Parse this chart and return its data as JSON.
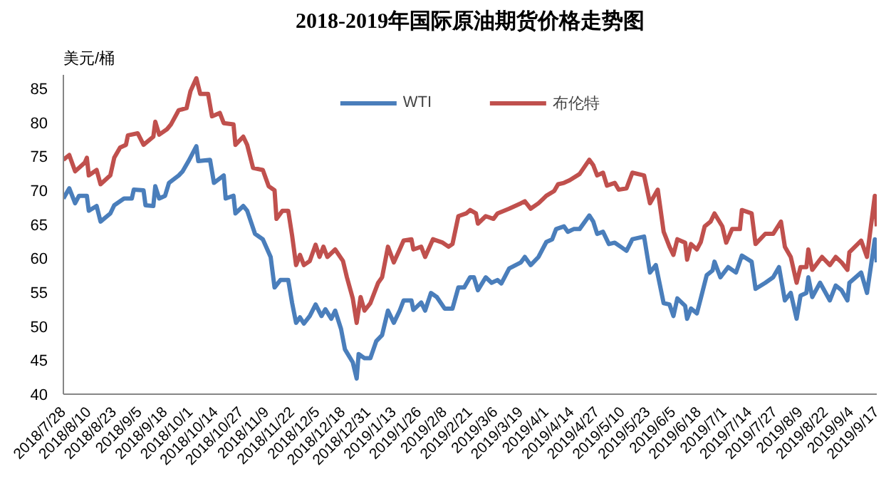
{
  "chart_data": {
    "type": "line",
    "title": "2018-2019年国际原油期货价格走势图",
    "ylabel": "美元/桶",
    "xlim": [
      "2018-07-28",
      "2019-09-17"
    ],
    "ylim": [
      40,
      87
    ],
    "yticks": [
      40,
      45,
      50,
      55,
      60,
      65,
      70,
      75,
      80,
      85
    ],
    "xticks": [
      {
        "value": "2018-07-28",
        "label": "2018/7/28"
      },
      {
        "value": "2018-08-10",
        "label": "2018/8/10"
      },
      {
        "value": "2018-08-23",
        "label": "2018/8/23"
      },
      {
        "value": "2018-09-05",
        "label": "2018/9/5"
      },
      {
        "value": "2018-09-18",
        "label": "2018/9/18"
      },
      {
        "value": "2018-10-01",
        "label": "2018/10/1"
      },
      {
        "value": "2018-10-14",
        "label": "2018/10/14"
      },
      {
        "value": "2018-10-27",
        "label": "2018/10/27"
      },
      {
        "value": "2018-11-09",
        "label": "2018/11/9"
      },
      {
        "value": "2018-11-22",
        "label": "2018/11/22"
      },
      {
        "value": "2018-12-05",
        "label": "2018/12/5"
      },
      {
        "value": "2018-12-18",
        "label": "2018/12/18"
      },
      {
        "value": "2018-12-31",
        "label": "2018/12/31"
      },
      {
        "value": "2019-01-13",
        "label": "2019/1/13"
      },
      {
        "value": "2019-01-26",
        "label": "2019/1/26"
      },
      {
        "value": "2019-02-08",
        "label": "2019/2/8"
      },
      {
        "value": "2019-02-21",
        "label": "2019/2/21"
      },
      {
        "value": "2019-03-06",
        "label": "2019/3/6"
      },
      {
        "value": "2019-03-19",
        "label": "2019/3/19"
      },
      {
        "value": "2019-04-01",
        "label": "2019/4/1"
      },
      {
        "value": "2019-04-14",
        "label": "2019/4/14"
      },
      {
        "value": "2019-04-27",
        "label": "2019/4/27"
      },
      {
        "value": "2019-05-10",
        "label": "2019/5/10"
      },
      {
        "value": "2019-05-23",
        "label": "2019/5/23"
      },
      {
        "value": "2019-06-05",
        "label": "2019/6/5"
      },
      {
        "value": "2019-06-18",
        "label": "2019/6/18"
      },
      {
        "value": "2019-07-01",
        "label": "2019/7/1"
      },
      {
        "value": "2019-07-14",
        "label": "2019/7/14"
      },
      {
        "value": "2019-07-27",
        "label": "2019/7/27"
      },
      {
        "value": "2019-08-09",
        "label": "2019/8/9"
      },
      {
        "value": "2019-08-22",
        "label": "2019/8/22"
      },
      {
        "value": "2019-09-04",
        "label": "2019/9/4"
      },
      {
        "value": "2019-09-17",
        "label": "2019/9/17"
      }
    ],
    "grid": false,
    "legend": "top",
    "marker": "none",
    "line_style": "solid",
    "series": [
      {
        "name": "WTI",
        "color": "#4a7ebb",
        "x": [
          "2018-07-28",
          "2018-07-31",
          "2018-08-03",
          "2018-08-05",
          "2018-08-09",
          "2018-08-10",
          "2018-08-14",
          "2018-08-16",
          "2018-08-21",
          "2018-08-23",
          "2018-08-28",
          "2018-09-01",
          "2018-09-02",
          "2018-09-07",
          "2018-09-08",
          "2018-09-12",
          "2018-09-13",
          "2018-09-15",
          "2018-09-18",
          "2018-09-20",
          "2018-09-25",
          "2018-09-27",
          "2018-09-30",
          "2018-10-04",
          "2018-10-05",
          "2018-10-11",
          "2018-10-13",
          "2018-10-18",
          "2018-10-19",
          "2018-10-23",
          "2018-10-24",
          "2018-10-28",
          "2018-10-30",
          "2018-11-03",
          "2018-11-07",
          "2018-11-11",
          "2018-11-13",
          "2018-11-16",
          "2018-11-20",
          "2018-11-22",
          "2018-11-24",
          "2018-11-26",
          "2018-11-28",
          "2018-12-01",
          "2018-12-04",
          "2018-12-07",
          "2018-12-09",
          "2018-12-12",
          "2018-12-14",
          "2018-12-17",
          "2018-12-19",
          "2018-12-23",
          "2018-12-25",
          "2018-12-26",
          "2018-12-29",
          "2019-01-01",
          "2019-01-04",
          "2019-01-07",
          "2019-01-10",
          "2019-01-13",
          "2019-01-16",
          "2019-01-18",
          "2019-01-22",
          "2019-01-23",
          "2019-01-27",
          "2019-01-29",
          "2019-02-01",
          "2019-02-04",
          "2019-02-08",
          "2019-02-12",
          "2019-02-15",
          "2019-02-18",
          "2019-02-21",
          "2019-02-23",
          "2019-02-25",
          "2019-03-01",
          "2019-03-04",
          "2019-03-07",
          "2019-03-09",
          "2019-03-13",
          "2019-03-19",
          "2019-03-21",
          "2019-03-24",
          "2019-03-28",
          "2019-04-01",
          "2019-04-04",
          "2019-04-06",
          "2019-04-10",
          "2019-04-12",
          "2019-04-15",
          "2019-04-18",
          "2019-04-23",
          "2019-04-25",
          "2019-04-27",
          "2019-04-30",
          "2019-05-03",
          "2019-05-06",
          "2019-05-09",
          "2019-05-12",
          "2019-05-15",
          "2019-05-21",
          "2019-05-24",
          "2019-05-27",
          "2019-05-31",
          "2019-06-03",
          "2019-06-05",
          "2019-06-07",
          "2019-06-11",
          "2019-06-12",
          "2019-06-14",
          "2019-06-17",
          "2019-06-19",
          "2019-06-22",
          "2019-06-25",
          "2019-06-26",
          "2019-06-29",
          "2019-07-03",
          "2019-07-07",
          "2019-07-10",
          "2019-07-15",
          "2019-07-17",
          "2019-07-22",
          "2019-07-26",
          "2019-07-29",
          "2019-08-01",
          "2019-08-04",
          "2019-08-07",
          "2019-08-09",
          "2019-08-12",
          "2019-08-13",
          "2019-08-15",
          "2019-08-19",
          "2019-08-24",
          "2019-08-27",
          "2019-08-30",
          "2019-09-02",
          "2019-09-03",
          "2019-09-09",
          "2019-09-12",
          "2019-09-16",
          "2019-09-17"
        ],
        "values": [
          68.8,
          70.3,
          68.1,
          69.2,
          69.2,
          67.0,
          67.7,
          65.4,
          66.6,
          67.8,
          68.8,
          68.8,
          70.1,
          70.0,
          67.8,
          67.7,
          70.6,
          68.8,
          69.2,
          71.1,
          72.2,
          72.8,
          74.3,
          76.5,
          74.3,
          74.5,
          71.1,
          72.2,
          68.8,
          69.2,
          66.6,
          67.7,
          67.0,
          63.6,
          62.8,
          60.2,
          55.7,
          56.8,
          56.8,
          53.4,
          50.5,
          51.3,
          50.4,
          51.5,
          53.2,
          51.5,
          52.5,
          51.1,
          52.3,
          49.6,
          46.6,
          44.7,
          42.3,
          45.9,
          45.3,
          45.3,
          47.8,
          48.7,
          52.3,
          50.5,
          52.3,
          53.8,
          53.8,
          52.4,
          53.5,
          52.3,
          54.9,
          54.3,
          52.6,
          52.6,
          55.7,
          55.7,
          57.2,
          57.2,
          55.3,
          57.2,
          56.4,
          56.8,
          56.3,
          58.5,
          59.4,
          60.2,
          59.0,
          60.2,
          62.4,
          62.8,
          64.3,
          64.7,
          63.9,
          64.3,
          64.3,
          66.3,
          65.4,
          63.6,
          63.9,
          62.1,
          62.3,
          61.7,
          61.1,
          62.8,
          63.2,
          57.9,
          59.0,
          53.4,
          53.2,
          51.5,
          54.1,
          53.0,
          51.1,
          52.6,
          51.9,
          54.1,
          57.5,
          58.2,
          59.5,
          57.2,
          58.7,
          57.9,
          60.4,
          59.5,
          55.5,
          56.4,
          57.2,
          58.7,
          53.8,
          54.9,
          51.1,
          54.5,
          54.9,
          57.2,
          54.3,
          56.4,
          53.8,
          56.0,
          55.3,
          53.8,
          56.4,
          57.9,
          54.9,
          62.8,
          59.4
        ]
      },
      {
        "name": "布伦特",
        "color": "#c0504d",
        "x": [
          "2018-07-28",
          "2018-07-31",
          "2018-08-03",
          "2018-08-08",
          "2018-08-09",
          "2018-08-10",
          "2018-08-14",
          "2018-08-16",
          "2018-08-21",
          "2018-08-23",
          "2018-08-26",
          "2018-08-29",
          "2018-08-30",
          "2018-09-04",
          "2018-09-07",
          "2018-09-12",
          "2018-09-13",
          "2018-09-15",
          "2018-09-19",
          "2018-09-21",
          "2018-09-25",
          "2018-09-29",
          "2018-10-01",
          "2018-10-04",
          "2018-10-06",
          "2018-10-10",
          "2018-10-12",
          "2018-10-16",
          "2018-10-18",
          "2018-10-23",
          "2018-10-24",
          "2018-10-28",
          "2018-10-30",
          "2018-11-02",
          "2018-11-07",
          "2018-11-10",
          "2018-11-13",
          "2018-11-14",
          "2018-11-17",
          "2018-11-20",
          "2018-11-22",
          "2018-11-24",
          "2018-11-26",
          "2018-11-28",
          "2018-12-01",
          "2018-12-04",
          "2018-12-06",
          "2018-12-08",
          "2018-12-10",
          "2018-12-14",
          "2018-12-18",
          "2018-12-20",
          "2018-12-23",
          "2018-12-25",
          "2018-12-27",
          "2018-12-29",
          "2019-01-01",
          "2019-01-05",
          "2019-01-07",
          "2019-01-10",
          "2019-01-13",
          "2019-01-16",
          "2019-01-18",
          "2019-01-22",
          "2019-01-23",
          "2019-01-27",
          "2019-01-29",
          "2019-02-02",
          "2019-02-07",
          "2019-02-10",
          "2019-02-12",
          "2019-02-15",
          "2019-02-19",
          "2019-02-21",
          "2019-02-24",
          "2019-02-25",
          "2019-03-01",
          "2019-03-05",
          "2019-03-07",
          "2019-03-13",
          "2019-03-19",
          "2019-03-21",
          "2019-03-24",
          "2019-03-28",
          "2019-04-01",
          "2019-04-05",
          "2019-04-07",
          "2019-04-10",
          "2019-04-13",
          "2019-04-18",
          "2019-04-23",
          "2019-04-25",
          "2019-04-27",
          "2019-04-30",
          "2019-05-02",
          "2019-05-06",
          "2019-05-08",
          "2019-05-12",
          "2019-05-15",
          "2019-05-21",
          "2019-05-24",
          "2019-05-28",
          "2019-05-31",
          "2019-06-03",
          "2019-06-05",
          "2019-06-07",
          "2019-06-11",
          "2019-06-12",
          "2019-06-14",
          "2019-06-17",
          "2019-06-19",
          "2019-06-21",
          "2019-06-24",
          "2019-06-26",
          "2019-06-30",
          "2019-07-02",
          "2019-07-05",
          "2019-07-09",
          "2019-07-10",
          "2019-07-15",
          "2019-07-17",
          "2019-07-22",
          "2019-07-26",
          "2019-07-30",
          "2019-08-01",
          "2019-08-04",
          "2019-08-07",
          "2019-08-09",
          "2019-08-12",
          "2019-08-13",
          "2019-08-15",
          "2019-08-20",
          "2019-08-24",
          "2019-08-27",
          "2019-08-30",
          "2019-09-02",
          "2019-09-03",
          "2019-09-09",
          "2019-09-12",
          "2019-09-16",
          "2019-09-17"
        ],
        "values": [
          74.5,
          75.2,
          72.8,
          74.1,
          74.8,
          72.2,
          73.0,
          70.9,
          72.2,
          74.8,
          76.3,
          76.7,
          78.1,
          78.4,
          76.7,
          77.9,
          80.1,
          78.2,
          79.0,
          79.7,
          81.8,
          82.1,
          84.6,
          86.5,
          84.2,
          84.2,
          80.9,
          81.4,
          79.9,
          79.7,
          76.7,
          77.9,
          76.7,
          73.3,
          73.0,
          70.6,
          70.0,
          65.8,
          67.0,
          67.0,
          63.3,
          59.0,
          60.5,
          59.0,
          59.6,
          62.0,
          60.2,
          61.7,
          60.2,
          61.3,
          59.6,
          57.2,
          54.1,
          50.5,
          54.3,
          52.3,
          53.4,
          56.4,
          57.2,
          61.7,
          59.4,
          61.3,
          62.6,
          62.8,
          61.3,
          61.7,
          60.2,
          62.8,
          62.3,
          61.7,
          62.1,
          66.2,
          66.6,
          67.1,
          66.6,
          65.1,
          66.2,
          65.8,
          66.6,
          67.3,
          68.1,
          68.4,
          67.3,
          68.1,
          69.2,
          69.9,
          70.9,
          71.1,
          71.5,
          72.4,
          74.5,
          73.7,
          72.2,
          72.6,
          70.7,
          71.1,
          70.1,
          70.3,
          72.6,
          72.2,
          68.1,
          70.1,
          63.9,
          61.7,
          60.5,
          62.8,
          62.3,
          59.8,
          62.1,
          61.3,
          62.4,
          64.7,
          65.4,
          66.6,
          64.7,
          62.3,
          64.3,
          64.3,
          67.1,
          66.6,
          62.1,
          63.6,
          63.6,
          65.4,
          61.7,
          60.2,
          56.4,
          58.7,
          58.7,
          61.3,
          58.3,
          60.2,
          59.0,
          60.2,
          59.4,
          58.3,
          60.9,
          62.6,
          60.2,
          69.2,
          64.7
        ]
      }
    ]
  }
}
